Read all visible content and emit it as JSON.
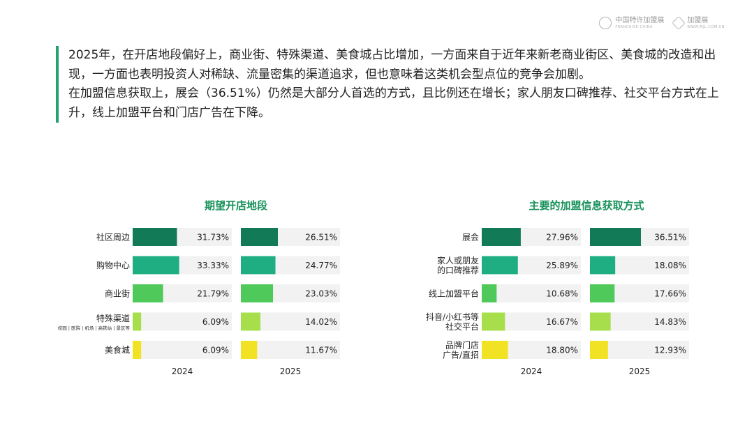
{
  "logos": [
    {
      "cn": "中国特许加盟展",
      "en": "FRANCHISE CHINA",
      "icon": "franchise-china-logo-icon"
    },
    {
      "cn": "加盟展",
      "en": "WWW.MJL.COM.CN",
      "icon": "mjl-logo-icon"
    }
  ],
  "intro": {
    "paragraph1": "2025年，在开店地段偏好上，商业街、特殊渠道、美食城占比增加，一方面来自于近年来新老商业街区、美食城的改造和出现，一方面也表明投资人对稀缺、流量密集的渠道追求，但也意味着这类机会型点位的竞争会加剧。",
    "paragraph2": "在加盟信息获取上，展会（36.51%）仍然是大部分人首选的方式，且比例还在增长；家人朋友口碑推荐、社交平台方式在上升，线上加盟平台和门店广告在下降。"
  },
  "colors": {
    "accent": "#25a36a",
    "title": "#17915a",
    "track": "#f2f2f2",
    "categories": [
      "#127a56",
      "#1eae82",
      "#4ec95a",
      "#a6df4b",
      "#f1e323"
    ]
  },
  "chart_data": [
    {
      "type": "bar",
      "title": "期望开店地段",
      "categories": [
        "社区周边",
        "购物中心",
        "商业街",
        "特殊渠道",
        "美食城"
      ],
      "category_notes": [
        "",
        "",
        "",
        "校园 | 医院 | 机场 | 高铁站 | 景区等",
        ""
      ],
      "series": [
        {
          "name": "2024",
          "values": [
            31.73,
            33.33,
            21.79,
            6.09,
            6.09
          ]
        },
        {
          "name": "2025",
          "values": [
            26.51,
            24.77,
            23.03,
            14.02,
            11.67
          ]
        }
      ],
      "value_labels": [
        [
          "31.73%",
          "33.33%",
          "21.79%",
          "6.09%",
          "6.09%"
        ],
        [
          "26.51%",
          "24.77%",
          "23.03%",
          "14.02%",
          "11.67%"
        ]
      ],
      "xlim": [
        0,
        100
      ],
      "grid": false
    },
    {
      "type": "bar",
      "title": "主要的加盟信息获取方式",
      "categories": [
        "展会",
        "家人或朋友\n的口碑推荐",
        "线上加盟平台",
        "抖音/小红书等\n社交平台",
        "品牌门店\n广告/直招"
      ],
      "category_notes": [
        "",
        "",
        "",
        "",
        ""
      ],
      "series": [
        {
          "name": "2024",
          "values": [
            27.96,
            25.89,
            10.68,
            16.67,
            18.8
          ]
        },
        {
          "name": "2025",
          "values": [
            36.51,
            18.08,
            17.66,
            14.83,
            12.93
          ]
        }
      ],
      "value_labels": [
        [
          "27.96%",
          "25.89%",
          "10.68%",
          "16.67%",
          "18.80%"
        ],
        [
          "36.51%",
          "18.08%",
          "17.66%",
          "14.83%",
          "12.93%"
        ]
      ],
      "xlim": [
        0,
        100
      ],
      "grid": false
    }
  ]
}
